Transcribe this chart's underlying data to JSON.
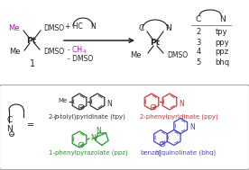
{
  "background_color": "#ffffff",
  "Me_color": "#cc00cc",
  "CH4_color": "#cc00cc",
  "text_color": "#222222",
  "box_border": "#aaaaaa",
  "tpy_color": "#333333",
  "ppy_color": "#cc3333",
  "ppz_color": "#229922",
  "bhq_color": "#4444cc",
  "table_rows": [
    [
      "2",
      "tpy"
    ],
    [
      "3",
      "ppy"
    ],
    [
      "4",
      "ppz"
    ],
    [
      "5",
      "bhq"
    ]
  ],
  "tpy_name": "2-(",
  "tpy_name_italic": "p",
  "tpy_name2": "-tolyl)pyridinate (tpy)",
  "ppy_name": "2-phenylpyridinate (ppy)",
  "ppz_name": "1-phenylpyrazolate (ppz)",
  "bhq_name": "benzo[",
  "bhq_name_italic": "h",
  "bhq_name2": "]quinolinate (bhq)",
  "fig_width": 2.76,
  "fig_height": 1.89,
  "dpi": 100
}
